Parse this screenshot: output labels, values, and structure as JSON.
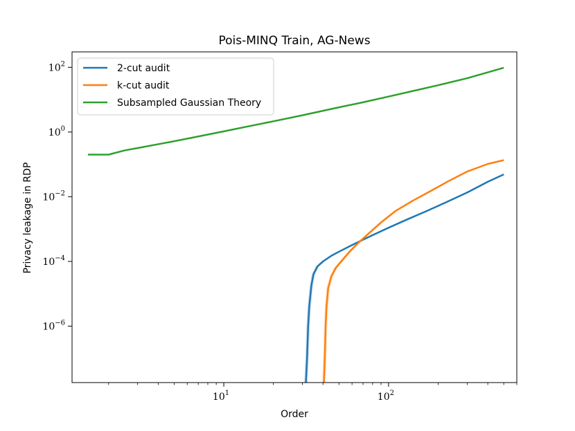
{
  "chart_data": {
    "type": "line",
    "title": "Pois-MINQ Train, AG-News",
    "xlabel": "Order",
    "ylabel": "Privacy leakage in RDP",
    "xscale": "log",
    "yscale": "log",
    "xlim": [
      1.2,
      600
    ],
    "ylim": [
      1.8e-08,
      300
    ],
    "xticks": [
      {
        "value": 10,
        "base": "10",
        "exp": "1"
      },
      {
        "value": 100,
        "base": "10",
        "exp": "2"
      }
    ],
    "yticks": [
      {
        "value": 100,
        "base": "10",
        "exp": "2"
      },
      {
        "value": 1,
        "base": "10",
        "exp": "0"
      },
      {
        "value": 0.01,
        "base": "10",
        "exp": "−2"
      },
      {
        "value": 0.0001,
        "base": "10",
        "exp": "−4"
      },
      {
        "value": 1e-06,
        "base": "10",
        "exp": "−6"
      }
    ],
    "grid": false,
    "legend_position": "top-left",
    "series": [
      {
        "name": "2-cut audit",
        "color": "#1f77b4",
        "band": true,
        "x": [
          31.5,
          32,
          32.5,
          33,
          34,
          35,
          37,
          40,
          45,
          50,
          60,
          70,
          80,
          100,
          130,
          170,
          220,
          300,
          400,
          500
        ],
        "y": [
          1.8e-08,
          1e-07,
          1e-06,
          4e-06,
          1.8e-05,
          4e-05,
          7e-05,
          0.0001,
          0.00015,
          0.0002,
          0.00032,
          0.00047,
          0.00065,
          0.0011,
          0.002,
          0.0036,
          0.0065,
          0.0135,
          0.029,
          0.049
        ]
      },
      {
        "name": "k-cut audit",
        "color": "#ff7f0e",
        "band": true,
        "x": [
          40.5,
          41,
          41.5,
          42,
          43,
          45,
          48,
          52,
          58,
          65,
          75,
          90,
          110,
          140,
          180,
          230,
          300,
          400,
          500
        ],
        "y": [
          1.8e-08,
          1e-07,
          1e-06,
          4e-06,
          1.5e-05,
          3.5e-05,
          6.5e-05,
          0.000105,
          0.0002,
          0.00036,
          0.0007,
          0.0016,
          0.0036,
          0.0075,
          0.015,
          0.03,
          0.06,
          0.103,
          0.135
        ]
      },
      {
        "name": "Subsampled Gaussian Theory",
        "color": "#2ca02c",
        "band": false,
        "x": [
          1.5,
          2,
          2.5,
          3,
          4,
          5,
          7,
          10,
          15,
          20,
          30,
          50,
          70,
          100,
          150,
          200,
          300,
          400,
          500
        ],
        "y": [
          0.2,
          0.2,
          0.27,
          0.32,
          0.42,
          0.52,
          0.73,
          1.05,
          1.6,
          2.15,
          3.3,
          5.8,
          8.3,
          12.5,
          20,
          28,
          46,
          70,
          97
        ]
      }
    ]
  }
}
